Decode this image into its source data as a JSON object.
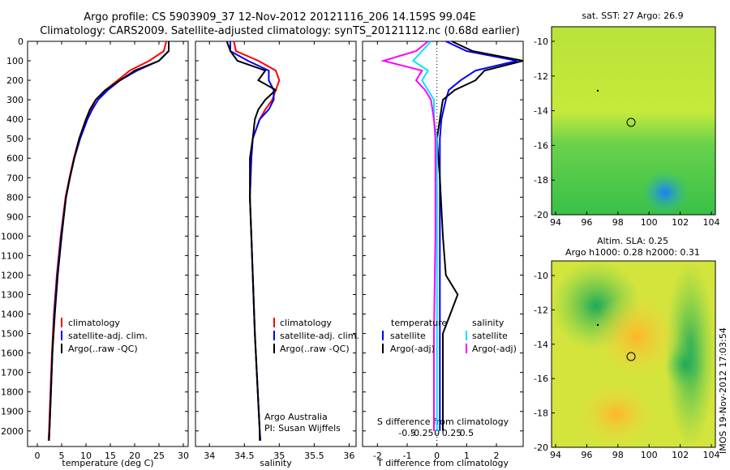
{
  "header": {
    "line1": "Argo profile: CS 5903909_37 12-Nov-2012 20121116_206 14.159S 99.04E",
    "line2": "Climatology: CARS2009. Satellite-adjusted climatology: synTS_20121112.nc (0.68d earlier)"
  },
  "colors": {
    "climatology": "#ff0000",
    "satellite": "#0000ff",
    "argo": "#000000",
    "sat_salinity": "#00e5ff",
    "argo_salinity": "#ff00ff"
  },
  "depth_axis": {
    "ticks": [
      "0",
      "100",
      "200",
      "300",
      "400",
      "500",
      "600",
      "700",
      "800",
      "900",
      "1000",
      "1100",
      "1200",
      "1300",
      "1400",
      "1500",
      "1600",
      "1700",
      "1800",
      "1900",
      "2000"
    ],
    "range": [
      0,
      2080
    ]
  },
  "legend_main": {
    "climatology": "climatology",
    "satellite": "satellite-adj. clim.",
    "argo": "Argo(..raw -QC)"
  },
  "legend_diff": {
    "temperature_header": "temperature",
    "salinity_header": "salinity",
    "satellite": "satellite",
    "argo_adj": "Argo(-adj)"
  },
  "credits": {
    "line1": "Argo Australia",
    "line2": "PI: Susan Wijffels"
  },
  "chart_data": [
    {
      "type": "line",
      "xlabel": "temperature (deg C)",
      "xlim": [
        -2,
        31
      ],
      "xticks": [
        "0",
        "5",
        "10",
        "15",
        "20",
        "25",
        "30"
      ],
      "ylim": [
        0,
        2080
      ],
      "y_reversed": true,
      "series": [
        {
          "name": "climatology",
          "depth": [
            0,
            50,
            100,
            150,
            200,
            250,
            300,
            350,
            400,
            500,
            600,
            700,
            800,
            1000,
            1200,
            1400,
            1600,
            1800,
            2000,
            2050
          ],
          "values": [
            26.5,
            26.0,
            23.0,
            19.0,
            16.5,
            14.0,
            12.0,
            11.0,
            10.0,
            8.6,
            7.5,
            6.6,
            5.8,
            4.8,
            4.0,
            3.4,
            3.0,
            2.7,
            2.4,
            2.3
          ]
        },
        {
          "name": "satellite-adj. clim.",
          "depth": [
            0,
            50,
            100,
            150,
            200,
            250,
            300,
            350,
            400,
            500,
            600,
            700,
            800,
            1000,
            1200,
            1400,
            1600,
            1800,
            2000,
            2050
          ],
          "values": [
            27.0,
            27.0,
            25.0,
            20.5,
            17.0,
            14.5,
            12.5,
            11.3,
            10.3,
            8.8,
            7.6,
            6.7,
            5.9,
            4.9,
            4.1,
            3.5,
            3.1,
            2.8,
            2.5,
            2.4
          ]
        },
        {
          "name": "Argo(..raw -QC)",
          "depth": [
            0,
            50,
            100,
            150,
            200,
            250,
            300,
            350,
            400,
            500,
            600,
            700,
            800,
            1000,
            1200,
            1400,
            1600,
            1800,
            2000,
            2050
          ],
          "values": [
            27.0,
            27.0,
            25.0,
            20.0,
            17.0,
            14.0,
            12.0,
            10.8,
            10.0,
            8.6,
            7.6,
            6.7,
            5.9,
            5.0,
            4.2,
            3.6,
            3.1,
            2.8,
            2.5,
            2.4
          ]
        }
      ]
    },
    {
      "type": "line",
      "xlabel": "salinity",
      "xlim": [
        33.8,
        36.1
      ],
      "xticks": [
        "34",
        "34.5",
        "35",
        "35.5",
        "36"
      ],
      "ylim": [
        0,
        2080
      ],
      "y_reversed": true,
      "series": [
        {
          "name": "climatology",
          "depth": [
            0,
            50,
            100,
            150,
            200,
            250,
            300,
            350,
            400,
            500,
            600,
            800,
            1000,
            1500,
            2000,
            2050
          ],
          "values": [
            34.35,
            34.38,
            34.7,
            34.95,
            35.0,
            34.95,
            34.9,
            34.8,
            34.72,
            34.62,
            34.6,
            34.58,
            34.6,
            34.65,
            34.72,
            34.73
          ]
        },
        {
          "name": "satellite-adj. clim.",
          "depth": [
            0,
            50,
            100,
            150,
            200,
            250,
            300,
            350,
            400,
            500,
            600,
            800,
            1000,
            1500,
            2000,
            2050
          ],
          "values": [
            34.3,
            34.3,
            34.55,
            34.85,
            34.85,
            34.92,
            34.92,
            34.85,
            34.72,
            34.62,
            34.6,
            34.58,
            34.6,
            34.65,
            34.72,
            34.73
          ]
        },
        {
          "name": "Argo(..raw -QC)",
          "depth": [
            0,
            50,
            100,
            150,
            200,
            250,
            300,
            350,
            400,
            500,
            600,
            800,
            1000,
            1500,
            2000,
            2050
          ],
          "values": [
            34.25,
            34.3,
            34.4,
            34.8,
            34.7,
            34.95,
            34.8,
            34.7,
            34.65,
            34.62,
            34.58,
            34.58,
            34.6,
            34.65,
            34.72,
            34.72
          ]
        }
      ]
    },
    {
      "type": "line",
      "xlabel": "T difference from climatology",
      "xlabel_top": "S difference from climatology",
      "xlim": [
        -2.5,
        2.9
      ],
      "xticks": [
        "-2",
        "-1",
        "0",
        "1",
        "2"
      ],
      "xticks_top": [
        "-0.5",
        "-0.25",
        "0",
        "0.25",
        "0.5"
      ],
      "ylim": [
        0,
        2080
      ],
      "y_reversed": true,
      "series": [
        {
          "name": "temperature satellite",
          "depth": [
            0,
            50,
            100,
            150,
            200,
            250,
            300,
            400,
            500,
            700,
            1000,
            1300,
            1500,
            2000
          ],
          "values": [
            0.3,
            1.0,
            2.7,
            1.3,
            0.8,
            0.4,
            0.3,
            0.15,
            0.1,
            0.1,
            0.1,
            0.1,
            0.1,
            0.1
          ]
        },
        {
          "name": "temperature Argo(-adj)",
          "depth": [
            0,
            50,
            100,
            150,
            200,
            250,
            300,
            400,
            500,
            700,
            1000,
            1200,
            1300,
            1500,
            2000
          ],
          "values": [
            0.5,
            1.2,
            2.9,
            1.6,
            1.3,
            0.6,
            0.2,
            0.1,
            0.0,
            0.1,
            0.2,
            0.3,
            0.7,
            0.2,
            0.2
          ]
        },
        {
          "name": "salinity satellite",
          "depth": [
            0,
            50,
            100,
            150,
            200,
            250,
            300,
            400,
            500,
            700,
            1000,
            1500,
            2000
          ],
          "values": [
            -0.2,
            -0.5,
            -0.8,
            -0.3,
            -0.5,
            -0.3,
            -0.1,
            -0.1,
            0.0,
            0.0,
            0.0,
            0.0,
            0.0
          ]
        },
        {
          "name": "salinity Argo(-adj)",
          "depth": [
            0,
            50,
            100,
            150,
            200,
            250,
            300,
            400,
            500,
            700,
            1000,
            1500,
            2000
          ],
          "values": [
            -0.3,
            -0.7,
            -1.8,
            -0.5,
            -0.7,
            -0.4,
            -0.2,
            -0.1,
            -0.05,
            -0.05,
            -0.05,
            -0.1,
            -0.1
          ]
        }
      ]
    }
  ],
  "maps": {
    "top": {
      "title": "sat. SST: 27 Argo: 26.9",
      "yticks": [
        "-10",
        "-12",
        "-14",
        "-16",
        "-18",
        "-20"
      ],
      "xticks": [
        "94",
        "96",
        "98",
        "100",
        "102",
        "104"
      ]
    },
    "bottom": {
      "title1": "Altim. SLA: 0.25",
      "title2": "Argo h1000: 0.28 h2000: 0.31",
      "yticks": [
        "-10",
        "-12",
        "-14",
        "-16",
        "-18",
        "-20"
      ],
      "xticks": [
        "94",
        "96",
        "98",
        "100",
        "102",
        "104"
      ]
    }
  },
  "stamp": "IMOS 19-Nov-2012 17:03:54"
}
